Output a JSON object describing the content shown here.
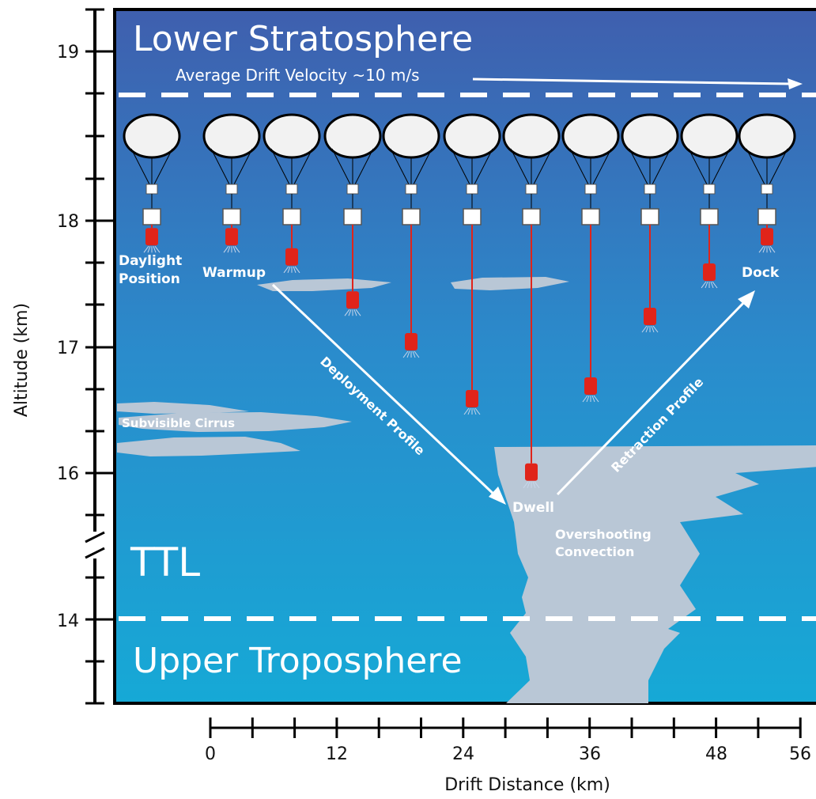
{
  "regions": {
    "lower_stratosphere": "Lower Stratosphere",
    "ttl": "TTL",
    "upper_troposphere": "Upper Troposphere"
  },
  "drift_velocity_label": "Average Drift Velocity ~10 m/s",
  "labels": {
    "daylight_position_line1": "Daylight",
    "daylight_position_line2": "Position",
    "warmup": "Warmup",
    "dock": "Dock",
    "dwell": "Dwell",
    "deployment_profile": "Deployment Profile",
    "retraction_profile": "Retraction Profile",
    "subvisible_cirrus": "Subvisible Cirrus",
    "overshooting_line1": "Overshooting",
    "overshooting_line2": "Convection"
  },
  "y_axis": {
    "label": "Altitude (km)",
    "ticks": [
      "19",
      "18",
      "17",
      "16",
      "14"
    ]
  },
  "x_axis": {
    "label": "Drift Distance (km)",
    "ticks": [
      "0",
      "12",
      "24",
      "36",
      "48",
      "56"
    ]
  },
  "balloon_sequence": [
    {
      "stage": "Daylight Position",
      "payload_altitude_km": 17.88
    },
    {
      "stage": "Warmup",
      "payload_altitude_km": 17.88
    },
    {
      "stage": "Deployment",
      "payload_altitude_km": 17.72
    },
    {
      "stage": "Deployment",
      "payload_altitude_km": 17.38
    },
    {
      "stage": "Deployment",
      "payload_altitude_km": 17.05
    },
    {
      "stage": "Deployment",
      "payload_altitude_km": 16.6
    },
    {
      "stage": "Dwell",
      "payload_altitude_km": 16.02
    },
    {
      "stage": "Retraction",
      "payload_altitude_km": 16.7
    },
    {
      "stage": "Retraction",
      "payload_altitude_km": 17.25
    },
    {
      "stage": "Retraction",
      "payload_altitude_km": 17.6
    },
    {
      "stage": "Dock",
      "payload_altitude_km": 17.88
    }
  ],
  "colors": {
    "sky_top": "#3f5fae",
    "sky_mid": "#2a8ccc",
    "sky_bottom": "#16a9d6",
    "cloud": "#b9c7d6",
    "payload": "#e0241a"
  }
}
